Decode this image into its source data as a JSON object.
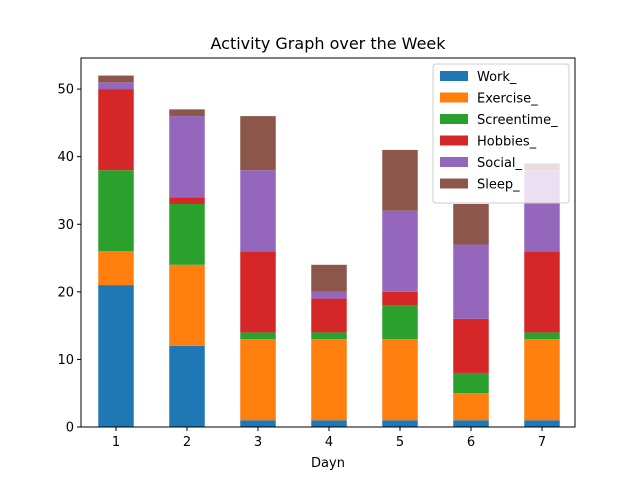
{
  "chart_data": {
    "type": "bar",
    "stacked": true,
    "title": "Activity Graph over the Week",
    "xlabel": "Dayn",
    "ylabel": "",
    "categories": [
      "1",
      "2",
      "3",
      "4",
      "5",
      "6",
      "7"
    ],
    "ylim": [
      0,
      54.6
    ],
    "yticks": [
      0,
      10,
      20,
      30,
      40,
      50
    ],
    "series": [
      {
        "name": "Work_",
        "color": "#1f77b4",
        "values": [
          21,
          12,
          1,
          1,
          1,
          1,
          1
        ]
      },
      {
        "name": "Exercise_",
        "color": "#ff7f0e",
        "values": [
          5,
          12,
          12,
          12,
          12,
          4,
          12
        ]
      },
      {
        "name": "Screentime_",
        "color": "#2ca02c",
        "values": [
          12,
          9,
          1,
          1,
          5,
          3,
          1
        ]
      },
      {
        "name": "Hobbies_",
        "color": "#d62728",
        "values": [
          12,
          1,
          12,
          5,
          2,
          8,
          12
        ]
      },
      {
        "name": "Social_",
        "color": "#9467bd",
        "values": [
          1,
          12,
          12,
          1,
          12,
          11,
          12
        ]
      },
      {
        "name": "Sleep_",
        "color": "#8c564b",
        "values": [
          1,
          1,
          8,
          4,
          9,
          6,
          1
        ]
      }
    ],
    "legend": "top-right"
  }
}
